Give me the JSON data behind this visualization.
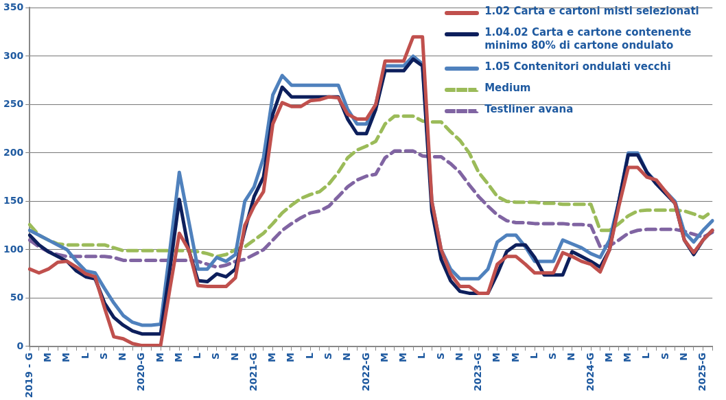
{
  "chart_data": {
    "type": "line",
    "categories": [
      "2019 - G",
      null,
      "M",
      null,
      "M",
      null,
      "L",
      null,
      "S",
      null,
      "N",
      null,
      "2020-G",
      null,
      "M",
      null,
      "M",
      null,
      "L",
      null,
      "S",
      null,
      "N",
      null,
      "2021-G",
      null,
      "M",
      null,
      "M",
      null,
      "L",
      null,
      "S",
      null,
      "N",
      null,
      "2022-G",
      null,
      "M",
      null,
      "M",
      null,
      "L",
      null,
      "S",
      null,
      "N",
      null,
      "2023-G",
      null,
      "M",
      null,
      "M",
      null,
      "L",
      null,
      "S",
      null,
      "N",
      null,
      "2024-G",
      null,
      "M",
      null,
      "M",
      null,
      "L",
      null,
      "S",
      null,
      "N",
      null,
      "2025-G",
      null
    ],
    "series": [
      {
        "name": "1.02  Carta e cartoni misti selezionati",
        "color": "#c0504d",
        "line_style": "solid",
        "values": [
          80,
          76,
          80,
          87,
          88,
          82,
          75,
          72,
          40,
          10,
          8,
          3,
          1,
          1,
          1,
          60,
          117,
          100,
          63,
          62,
          62,
          62,
          71,
          125,
          145,
          160,
          230,
          252,
          248,
          248,
          254,
          255,
          258,
          257,
          240,
          235,
          235,
          250,
          295,
          295,
          295,
          320,
          320,
          150,
          100,
          75,
          62,
          62,
          55,
          55,
          85,
          93,
          93,
          85,
          76,
          76,
          76,
          97,
          93,
          88,
          85,
          77,
          100,
          145,
          185,
          185,
          175,
          172,
          160,
          148,
          110,
          97,
          110,
          120
        ]
      },
      {
        "name": "1.04.02 Carta e cartone contenente minimo 80% di cartone ondulato",
        "color": "#0d1f5c",
        "line_style": "solid",
        "values": [
          115,
          105,
          98,
          93,
          88,
          78,
          72,
          70,
          45,
          30,
          22,
          16,
          13,
          13,
          13,
          80,
          152,
          100,
          68,
          67,
          75,
          72,
          80,
          120,
          155,
          175,
          240,
          268,
          258,
          258,
          258,
          258,
          258,
          258,
          235,
          220,
          220,
          245,
          285,
          285,
          285,
          297,
          290,
          140,
          90,
          68,
          57,
          55,
          55,
          55,
          75,
          98,
          105,
          105,
          92,
          74,
          74,
          74,
          98,
          93,
          88,
          82,
          100,
          150,
          198,
          198,
          180,
          168,
          158,
          148,
          110,
          95,
          110,
          120
        ]
      },
      {
        "name": "1.05  Contenitori ondulati vecchi",
        "color": "#4f81bd",
        "line_style": "solid",
        "values": [
          120,
          115,
          110,
          105,
          100,
          88,
          78,
          76,
          60,
          45,
          32,
          25,
          22,
          22,
          23,
          100,
          180,
          130,
          80,
          80,
          92,
          88,
          95,
          150,
          165,
          195,
          260,
          280,
          270,
          270,
          270,
          270,
          270,
          270,
          245,
          230,
          230,
          250,
          290,
          290,
          290,
          300,
          292,
          150,
          100,
          80,
          70,
          70,
          70,
          80,
          108,
          115,
          115,
          103,
          88,
          88,
          88,
          110,
          106,
          102,
          96,
          92,
          110,
          150,
          200,
          200,
          180,
          170,
          160,
          150,
          118,
          108,
          120,
          130
        ]
      },
      {
        "name": "Medium",
        "color": "#9bbb59",
        "line_style": "dashed",
        "values": [
          126,
          115,
          110,
          106,
          105,
          105,
          105,
          105,
          105,
          102,
          99,
          99,
          99,
          99,
          99,
          99,
          99,
          99,
          98,
          96,
          93,
          95,
          100,
          103,
          110,
          117,
          127,
          138,
          146,
          153,
          157,
          160,
          168,
          180,
          195,
          203,
          207,
          212,
          230,
          238,
          238,
          238,
          233,
          232,
          232,
          222,
          213,
          200,
          180,
          168,
          155,
          150,
          149,
          149,
          149,
          148,
          148,
          147,
          147,
          147,
          147,
          120,
          120,
          127,
          135,
          140,
          141,
          141,
          141,
          141,
          140,
          137,
          133,
          140
        ]
      },
      {
        "name": "Testliner avana",
        "color": "#8064a2",
        "line_style": "dashed",
        "values": [
          110,
          103,
          98,
          95,
          93,
          93,
          93,
          93,
          93,
          92,
          89,
          89,
          89,
          89,
          89,
          89,
          89,
          89,
          88,
          85,
          82,
          84,
          88,
          90,
          95,
          100,
          110,
          120,
          127,
          133,
          138,
          140,
          145,
          155,
          165,
          172,
          176,
          178,
          195,
          202,
          202,
          202,
          197,
          196,
          196,
          189,
          180,
          167,
          155,
          145,
          136,
          130,
          128,
          128,
          127,
          127,
          127,
          127,
          126,
          126,
          125,
          103,
          104,
          110,
          117,
          120,
          121,
          121,
          121,
          121,
          119,
          116,
          113,
          118
        ]
      }
    ],
    "ylim": [
      0,
      350
    ],
    "yticks": [
      0,
      50,
      100,
      150,
      200,
      250,
      300,
      350
    ],
    "grid": "y",
    "legend": "top right",
    "marker": "none"
  }
}
